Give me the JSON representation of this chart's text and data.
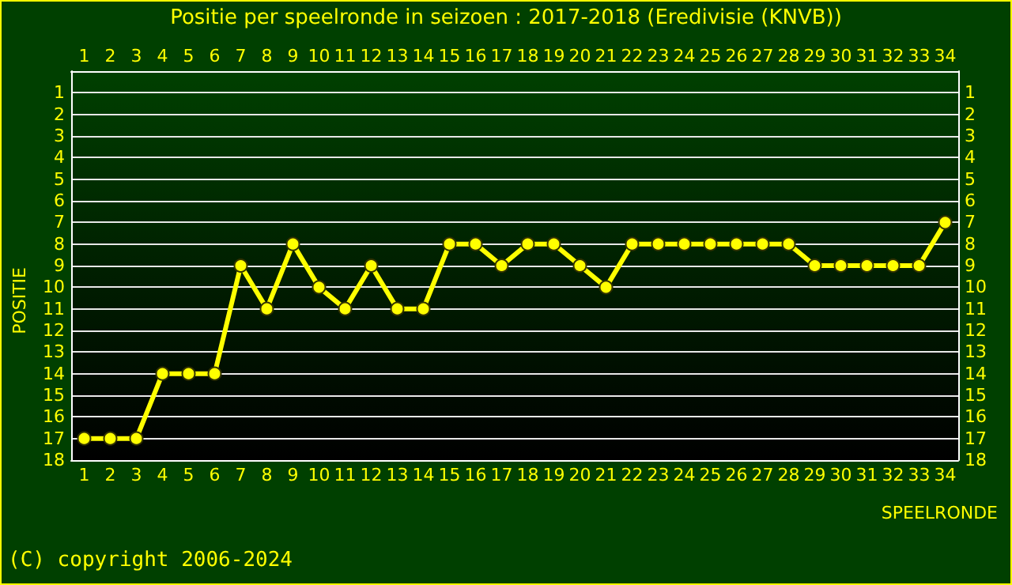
{
  "chart_data": {
    "type": "line",
    "title": "Positie per speelronde in seizoen : 2017-2018 (Eredivisie (KNVB))",
    "xlabel": "SPEELRONDE",
    "ylabel": "POSITIE",
    "annotations": [
      "(C) copyright 2006-2024"
    ],
    "x": [
      1,
      2,
      3,
      4,
      5,
      6,
      7,
      8,
      9,
      10,
      11,
      12,
      13,
      14,
      15,
      16,
      17,
      18,
      19,
      20,
      21,
      22,
      23,
      24,
      25,
      26,
      27,
      28,
      29,
      30,
      31,
      32,
      33,
      34
    ],
    "series": [
      {
        "color": "#ffff00",
        "values": [
          17,
          17,
          17,
          14,
          14,
          14,
          9,
          11,
          8,
          10,
          11,
          9,
          11,
          11,
          8,
          8,
          9,
          8,
          8,
          9,
          10,
          8,
          8,
          8,
          8,
          8,
          8,
          8,
          9,
          9,
          9,
          9,
          9,
          7
        ]
      }
    ],
    "xlim": [
      0.5,
      34.5
    ],
    "xticks": [
      1,
      2,
      3,
      4,
      5,
      6,
      7,
      8,
      9,
      10,
      11,
      12,
      13,
      14,
      15,
      16,
      17,
      18,
      19,
      20,
      21,
      22,
      23,
      24,
      25,
      26,
      27,
      28,
      29,
      30,
      31,
      32,
      33,
      34
    ],
    "x2lim": [
      0.5,
      34.5
    ],
    "x2ticks": [
      1,
      2,
      3,
      4,
      5,
      6,
      7,
      8,
      9,
      10,
      11,
      12,
      13,
      14,
      15,
      16,
      17,
      18,
      19,
      20,
      21,
      22,
      23,
      24,
      25,
      26,
      27,
      28,
      29,
      30,
      31,
      32,
      33,
      34
    ],
    "ylim": [
      18,
      0
    ],
    "yticks": [
      1,
      2,
      3,
      4,
      5,
      6,
      7,
      8,
      9,
      10,
      11,
      12,
      13,
      14,
      15,
      16,
      17,
      18
    ],
    "y2lim": [
      18,
      0
    ],
    "y2ticks": [
      1,
      2,
      3,
      4,
      5,
      6,
      7,
      8,
      9,
      10,
      11,
      12,
      13,
      14,
      15,
      16,
      17,
      18
    ],
    "grid": "y",
    "marker": "circle",
    "line_style": "solid"
  }
}
